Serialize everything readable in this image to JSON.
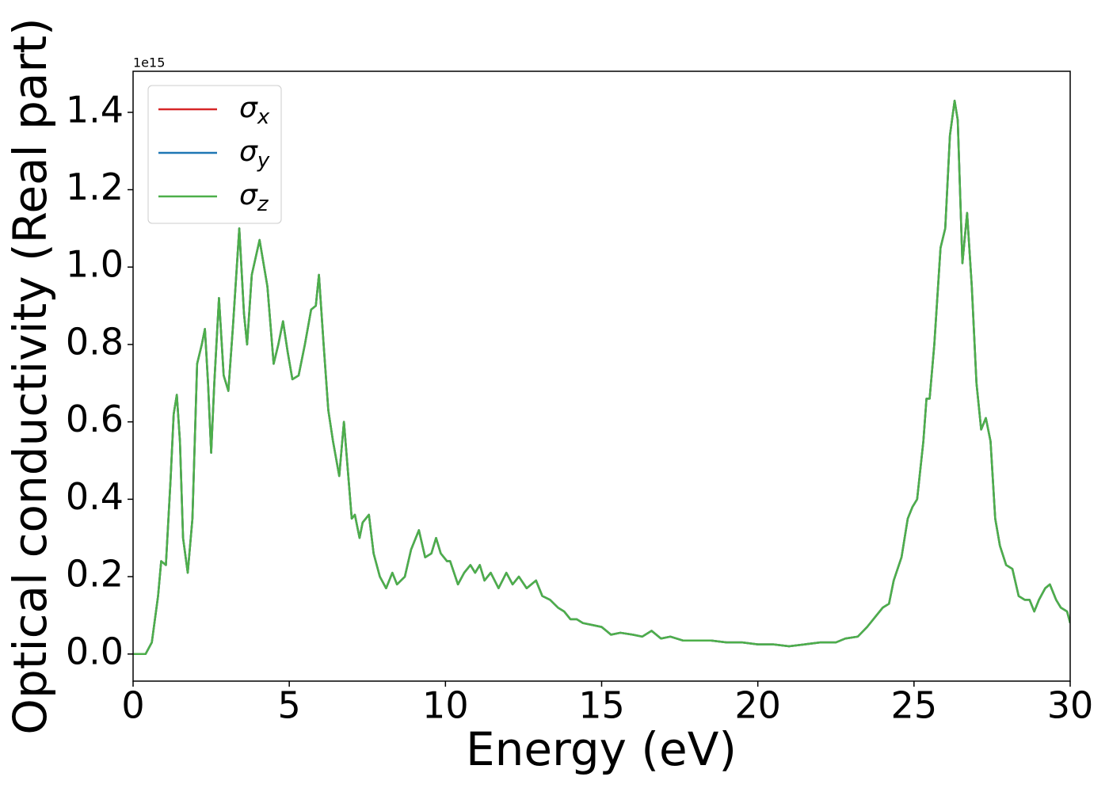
{
  "chart_data": {
    "type": "line",
    "xlabel": "Energy (eV)",
    "ylabel": "Optical conductivity (Real part)",
    "y_offset_label": "1e15",
    "xlim": [
      0,
      30
    ],
    "xticks": [
      0,
      5,
      10,
      15,
      20,
      25,
      30
    ],
    "ylim": [
      -0.07,
      1.506
    ],
    "yticks": [
      {
        "value": 0,
        "label": "0.0"
      },
      0.2,
      0.4,
      0.6,
      0.8,
      {
        "value": 1,
        "label": "1.0"
      },
      1.2,
      1.4
    ],
    "legend": "upper left",
    "x": [
      0,
      0.4,
      0.6,
      0.8,
      0.9,
      1.05,
      1.2,
      1.3,
      1.4,
      1.5,
      1.6,
      1.75,
      1.9,
      2.05,
      2.2,
      2.3,
      2.4,
      2.5,
      2.6,
      2.75,
      2.9,
      3.05,
      3.2,
      3.4,
      3.55,
      3.65,
      3.8,
      4.05,
      4.3,
      4.5,
      4.65,
      4.8,
      4.95,
      5.1,
      5.3,
      5.5,
      5.7,
      5.85,
      5.95,
      6.1,
      6.25,
      6.4,
      6.6,
      6.75,
      6.9,
      7.0,
      7.1,
      7.25,
      7.35,
      7.55,
      7.7,
      7.9,
      8.1,
      8.3,
      8.45,
      8.7,
      8.9,
      9.15,
      9.35,
      9.55,
      9.7,
      9.85,
      10.05,
      10.15,
      10.4,
      10.6,
      10.8,
      10.95,
      11.1,
      11.25,
      11.45,
      11.7,
      11.95,
      12.15,
      12.35,
      12.6,
      12.9,
      13.1,
      13.35,
      13.6,
      13.8,
      14.0,
      14.2,
      14.4,
      14.7,
      15.0,
      15.3,
      15.6,
      16.0,
      16.3,
      16.6,
      16.9,
      17.2,
      17.6,
      18.0,
      18.5,
      19.0,
      19.5,
      20.0,
      20.5,
      21.0,
      21.5,
      22.0,
      22.5,
      22.8,
      23.2,
      23.5,
      23.8,
      24.0,
      24.2,
      24.35,
      24.6,
      24.8,
      24.95,
      25.1,
      25.3,
      25.4,
      25.5,
      25.65,
      25.85,
      26.0,
      26.15,
      26.3,
      26.4,
      26.55,
      26.7,
      26.85,
      27.0,
      27.15,
      27.3,
      27.45,
      27.6,
      27.75,
      27.95,
      28.15,
      28.35,
      28.55,
      28.7,
      28.85,
      29.0,
      29.2,
      29.35,
      29.55,
      29.7,
      29.9,
      30.0
    ],
    "series": [
      {
        "name": "σx",
        "color": "#d62728",
        "values": [
          0,
          0,
          0.03,
          0.15,
          0.24,
          0.23,
          0.45,
          0.62,
          0.67,
          0.55,
          0.3,
          0.21,
          0.35,
          0.75,
          0.8,
          0.84,
          0.7,
          0.52,
          0.7,
          0.92,
          0.72,
          0.68,
          0.85,
          1.1,
          0.88,
          0.8,
          0.98,
          1.07,
          0.95,
          0.75,
          0.8,
          0.86,
          0.78,
          0.71,
          0.72,
          0.8,
          0.89,
          0.9,
          0.98,
          0.8,
          0.63,
          0.55,
          0.46,
          0.6,
          0.45,
          0.35,
          0.36,
          0.3,
          0.34,
          0.36,
          0.26,
          0.2,
          0.17,
          0.21,
          0.18,
          0.2,
          0.27,
          0.32,
          0.25,
          0.26,
          0.3,
          0.26,
          0.24,
          0.24,
          0.18,
          0.21,
          0.23,
          0.21,
          0.23,
          0.19,
          0.21,
          0.17,
          0.21,
          0.18,
          0.2,
          0.17,
          0.19,
          0.15,
          0.14,
          0.12,
          0.11,
          0.09,
          0.09,
          0.08,
          0.075,
          0.07,
          0.05,
          0.055,
          0.05,
          0.045,
          0.06,
          0.04,
          0.045,
          0.035,
          0.035,
          0.035,
          0.03,
          0.03,
          0.025,
          0.025,
          0.02,
          0.025,
          0.03,
          0.03,
          0.04,
          0.045,
          0.07,
          0.1,
          0.12,
          0.13,
          0.19,
          0.25,
          0.35,
          0.38,
          0.4,
          0.55,
          0.66,
          0.66,
          0.8,
          1.05,
          1.1,
          1.34,
          1.43,
          1.38,
          1.01,
          1.14,
          0.95,
          0.7,
          0.58,
          0.61,
          0.55,
          0.35,
          0.28,
          0.23,
          0.22,
          0.15,
          0.14,
          0.14,
          0.11,
          0.14,
          0.17,
          0.18,
          0.14,
          0.12,
          0.11,
          0.08
        ]
      },
      {
        "name": "σy",
        "color": "#1f77b4",
        "values": [
          0,
          0,
          0.03,
          0.15,
          0.24,
          0.23,
          0.45,
          0.62,
          0.67,
          0.55,
          0.3,
          0.21,
          0.35,
          0.75,
          0.8,
          0.84,
          0.7,
          0.52,
          0.7,
          0.92,
          0.72,
          0.68,
          0.85,
          1.1,
          0.88,
          0.8,
          0.98,
          1.07,
          0.95,
          0.75,
          0.8,
          0.86,
          0.78,
          0.71,
          0.72,
          0.8,
          0.89,
          0.9,
          0.98,
          0.8,
          0.63,
          0.55,
          0.46,
          0.6,
          0.45,
          0.35,
          0.36,
          0.3,
          0.34,
          0.36,
          0.26,
          0.2,
          0.17,
          0.21,
          0.18,
          0.2,
          0.27,
          0.32,
          0.25,
          0.26,
          0.3,
          0.26,
          0.24,
          0.24,
          0.18,
          0.21,
          0.23,
          0.21,
          0.23,
          0.19,
          0.21,
          0.17,
          0.21,
          0.18,
          0.2,
          0.17,
          0.19,
          0.15,
          0.14,
          0.12,
          0.11,
          0.09,
          0.09,
          0.08,
          0.075,
          0.07,
          0.05,
          0.055,
          0.05,
          0.045,
          0.06,
          0.04,
          0.045,
          0.035,
          0.035,
          0.035,
          0.03,
          0.03,
          0.025,
          0.025,
          0.02,
          0.025,
          0.03,
          0.03,
          0.04,
          0.045,
          0.07,
          0.1,
          0.12,
          0.13,
          0.19,
          0.25,
          0.35,
          0.38,
          0.4,
          0.55,
          0.66,
          0.66,
          0.8,
          1.05,
          1.1,
          1.34,
          1.43,
          1.38,
          1.01,
          1.14,
          0.95,
          0.7,
          0.58,
          0.61,
          0.55,
          0.35,
          0.28,
          0.23,
          0.22,
          0.15,
          0.14,
          0.14,
          0.11,
          0.14,
          0.17,
          0.18,
          0.14,
          0.12,
          0.11,
          0.08
        ]
      },
      {
        "name": "σz",
        "color": "#4daf4a",
        "values": [
          0,
          0,
          0.03,
          0.15,
          0.24,
          0.23,
          0.45,
          0.62,
          0.67,
          0.55,
          0.3,
          0.21,
          0.35,
          0.75,
          0.8,
          0.84,
          0.7,
          0.52,
          0.7,
          0.92,
          0.72,
          0.68,
          0.85,
          1.1,
          0.88,
          0.8,
          0.98,
          1.07,
          0.95,
          0.75,
          0.8,
          0.86,
          0.78,
          0.71,
          0.72,
          0.8,
          0.89,
          0.9,
          0.98,
          0.8,
          0.63,
          0.55,
          0.46,
          0.6,
          0.45,
          0.35,
          0.36,
          0.3,
          0.34,
          0.36,
          0.26,
          0.2,
          0.17,
          0.21,
          0.18,
          0.2,
          0.27,
          0.32,
          0.25,
          0.26,
          0.3,
          0.26,
          0.24,
          0.24,
          0.18,
          0.21,
          0.23,
          0.21,
          0.23,
          0.19,
          0.21,
          0.17,
          0.21,
          0.18,
          0.2,
          0.17,
          0.19,
          0.15,
          0.14,
          0.12,
          0.11,
          0.09,
          0.09,
          0.08,
          0.075,
          0.07,
          0.05,
          0.055,
          0.05,
          0.045,
          0.06,
          0.04,
          0.045,
          0.035,
          0.035,
          0.035,
          0.03,
          0.03,
          0.025,
          0.025,
          0.02,
          0.025,
          0.03,
          0.03,
          0.04,
          0.045,
          0.07,
          0.1,
          0.12,
          0.13,
          0.19,
          0.25,
          0.35,
          0.38,
          0.4,
          0.55,
          0.66,
          0.66,
          0.8,
          1.05,
          1.1,
          1.34,
          1.43,
          1.38,
          1.01,
          1.14,
          0.95,
          0.7,
          0.58,
          0.61,
          0.55,
          0.35,
          0.28,
          0.23,
          0.22,
          0.15,
          0.14,
          0.14,
          0.11,
          0.14,
          0.17,
          0.18,
          0.14,
          0.12,
          0.11,
          0.08
        ]
      }
    ]
  }
}
